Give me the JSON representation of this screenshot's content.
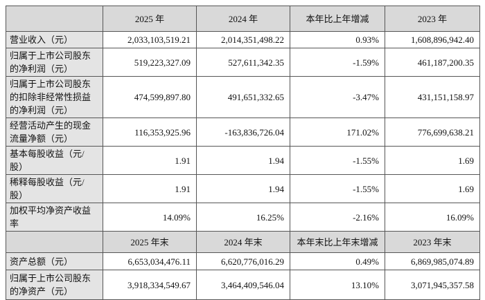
{
  "table": {
    "header": [
      "",
      "2025 年",
      "2024 年",
      "本年比上年增减",
      "2023 年"
    ],
    "rows": [
      [
        "营业收入（元）",
        "2,033,103,519.21",
        "2,014,351,498.22",
        "0.93%",
        "1,608,896,942.40"
      ],
      [
        "归属于上市公司股东的净利润（元）",
        "519,223,327.09",
        "527,611,342.35",
        "-1.59%",
        "461,187,200.35"
      ],
      [
        "归属于上市公司股东的扣除非经常性损益的净利润（元）",
        "474,599,897.80",
        "491,651,332.65",
        "-3.47%",
        "431,151,158.97"
      ],
      [
        "经营活动产生的现金流量净额（元）",
        "116,353,925.96",
        "-163,836,726.04",
        "171.02%",
        "776,699,638.21"
      ],
      [
        "基本每股收益（元/股）",
        "1.91",
        "1.94",
        "-1.55%",
        "1.69"
      ],
      [
        "稀释每股收益（元/股）",
        "1.91",
        "1.94",
        "-1.55%",
        "1.69"
      ],
      [
        "加权平均净资产收益率",
        "14.09%",
        "16.25%",
        "-2.16%",
        "16.09%"
      ]
    ],
    "header2": [
      "",
      "2025 年末",
      "2024 年末",
      "本年末比上年末增减",
      "2023 年末"
    ],
    "rows2": [
      [
        "资产总额（元）",
        "6,653,034,476.11",
        "6,620,776,016.29",
        "0.49%",
        "6,869,985,074.89"
      ],
      [
        "归属于上市公司股东的净资产（元）",
        "3,918,334,549.67",
        "3,464,409,546.04",
        "13.10%",
        "3,071,945,357.58"
      ]
    ]
  }
}
